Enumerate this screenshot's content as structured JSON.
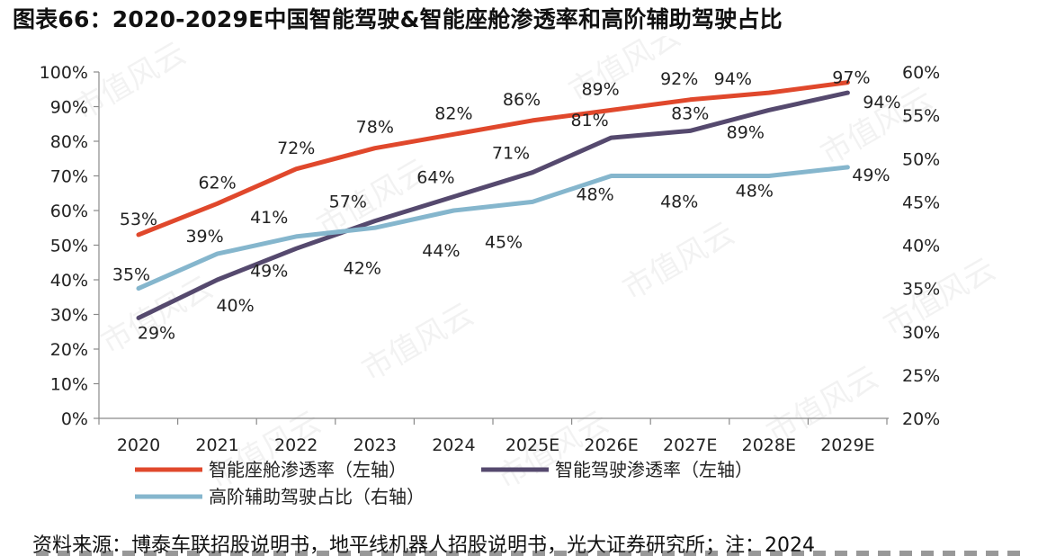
{
  "figure": {
    "title": "图表66：2020-2029E中国智能驾驶&智能座舱渗透率和高阶辅助驾驶占比",
    "source": "资料来源：博泰车联招股说明书，地平线机器人招股说明书，光大证券研究所；注：2024",
    "watermark": "市值风云"
  },
  "chart_data": {
    "type": "line",
    "categories": [
      "2020",
      "2021",
      "2022",
      "2023",
      "2024",
      "2025E",
      "2026E",
      "2027E",
      "2028E",
      "2029E"
    ],
    "y_left": {
      "ticks": [
        "0%",
        "10%",
        "20%",
        "30%",
        "40%",
        "50%",
        "60%",
        "70%",
        "80%",
        "90%",
        "100%"
      ],
      "range": [
        0,
        100
      ]
    },
    "y_right": {
      "ticks": [
        "20%",
        "25%",
        "30%",
        "35%",
        "40%",
        "45%",
        "50%",
        "55%",
        "60%"
      ],
      "range": [
        20,
        60
      ]
    },
    "grid": false,
    "legend_position": "bottom",
    "series": [
      {
        "name": "智能座舱渗透率（左轴）",
        "axis": "left",
        "color": "#e0482c",
        "values": [
          53,
          62,
          72,
          78,
          82,
          86,
          89,
          92,
          94,
          97
        ],
        "labels": [
          "53%",
          "62%",
          "72%",
          "78%",
          "82%",
          "86%",
          "89%",
          "92%",
          "94%",
          "97%"
        ]
      },
      {
        "name": "智能驾驶渗透率（左轴）",
        "axis": "left",
        "color": "#55496e",
        "values": [
          29,
          40,
          49,
          57,
          64,
          71,
          81,
          83,
          89,
          94
        ],
        "labels": [
          "29%",
          "40%",
          "49%",
          "57%",
          "64%",
          "71%",
          "81%",
          "83%",
          "89%",
          "94%"
        ]
      },
      {
        "name": "高阶辅助驾驶占比（右轴）",
        "axis": "right",
        "color": "#85b6cd",
        "values": [
          35,
          39,
          41,
          42,
          44,
          45,
          48,
          48,
          48,
          49
        ],
        "labels": [
          "35%",
          "39%",
          "41%",
          "42%",
          "44%",
          "45%",
          "48%",
          "48%",
          "48%",
          "49%"
        ]
      }
    ]
  }
}
